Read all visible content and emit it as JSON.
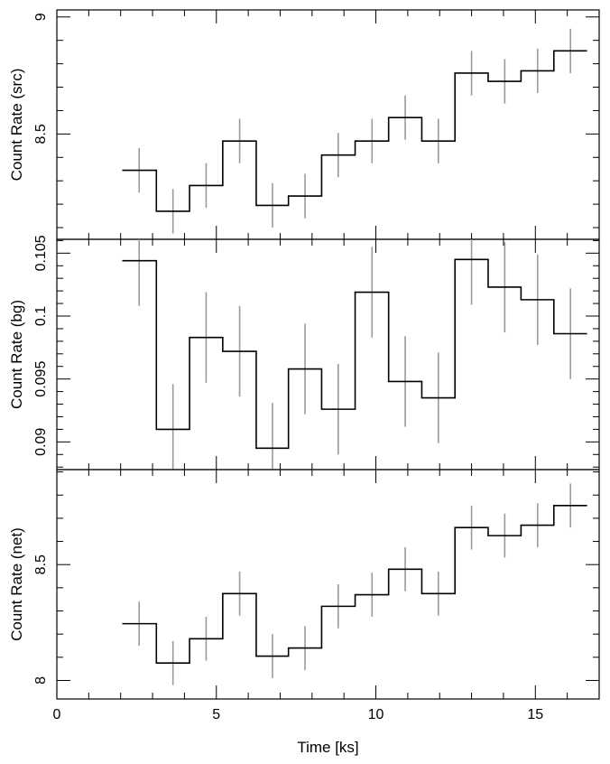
{
  "chart_data": {
    "type": "line",
    "style": "step histogram with vertical error bars",
    "shared_x": {
      "label": "Time [ks]",
      "range": [
        0,
        17
      ],
      "tick_labels": [
        "0",
        "5",
        "10",
        "15"
      ],
      "tick_values": [
        0,
        5,
        10,
        15
      ]
    },
    "bins": {
      "edges": [
        2.05,
        3.12,
        4.16,
        5.2,
        6.25,
        7.26,
        8.3,
        9.35,
        10.4,
        11.44,
        12.48,
        13.52,
        14.55,
        15.58,
        16.62
      ],
      "centers": [
        2.58,
        3.64,
        4.68,
        5.73,
        6.76,
        7.78,
        8.82,
        9.88,
        10.92,
        11.96,
        13.0,
        14.04,
        15.07,
        16.1
      ]
    },
    "panels": [
      {
        "ylabel": "Count Rate (src)",
        "ylim": [
          8.05,
          9.03
        ],
        "tick_labels": [
          "8.5",
          "9"
        ],
        "tick_values": [
          8.5,
          9.0
        ],
        "values": [
          8.345,
          8.17,
          8.28,
          8.47,
          8.195,
          8.235,
          8.41,
          8.47,
          8.57,
          8.47,
          8.76,
          8.725,
          8.77,
          8.855
        ],
        "errors": [
          0.095,
          0.095,
          0.095,
          0.095,
          0.095,
          0.095,
          0.095,
          0.095,
          0.095,
          0.095,
          0.095,
          0.095,
          0.095,
          0.095
        ]
      },
      {
        "ylabel": "Count Rate (bg)",
        "ylim": [
          0.0878,
          0.1061
        ],
        "tick_labels": [
          "0.09",
          "0.095",
          "0.1",
          "0.105"
        ],
        "tick_values": [
          0.09,
          0.095,
          0.1,
          0.105
        ],
        "values": [
          0.1044,
          0.091,
          0.0983,
          0.0972,
          0.0895,
          0.0958,
          0.0926,
          0.1019,
          0.0948,
          0.0935,
          0.1045,
          0.1023,
          0.1013,
          0.0986
        ],
        "errors": [
          0.0036,
          0.0036,
          0.0036,
          0.0036,
          0.0036,
          0.0036,
          0.0036,
          0.0036,
          0.0036,
          0.0036,
          0.0036,
          0.0036,
          0.0036,
          0.0036
        ]
      },
      {
        "ylabel": "Count Rate (net)",
        "ylim": [
          7.92,
          8.91
        ],
        "tick_labels": [
          "8",
          "8.5"
        ],
        "tick_values": [
          8.0,
          8.5
        ],
        "values": [
          8.245,
          8.075,
          8.18,
          8.375,
          8.105,
          8.14,
          8.32,
          8.37,
          8.48,
          8.375,
          8.66,
          8.625,
          8.67,
          8.755
        ],
        "errors": [
          0.095,
          0.095,
          0.095,
          0.095,
          0.095,
          0.095,
          0.095,
          0.095,
          0.095,
          0.095,
          0.095,
          0.095,
          0.095,
          0.095
        ]
      }
    ],
    "colors": {
      "step": "#000000",
      "error_bar": "#9a9a9a",
      "frame": "#000000"
    }
  }
}
